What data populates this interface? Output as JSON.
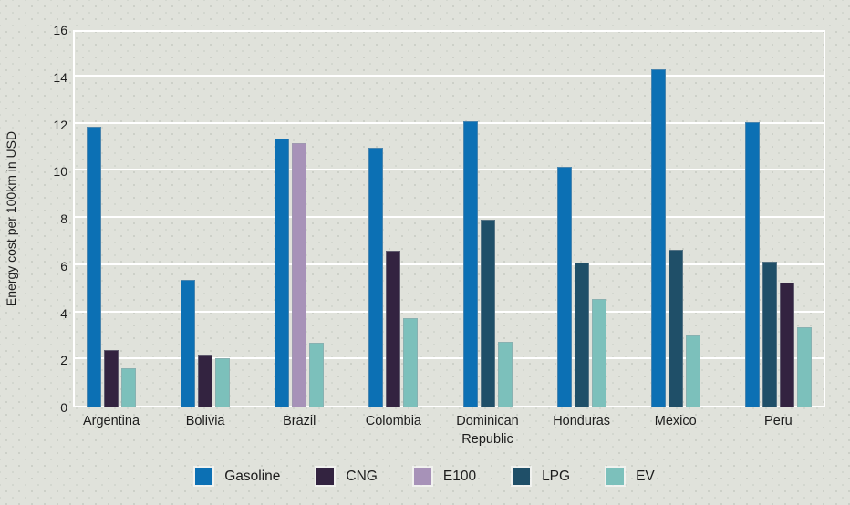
{
  "chart_data": {
    "type": "bar",
    "title": "",
    "xlabel": "",
    "ylabel": "Energy cost per 100km in USD",
    "ylim": [
      0,
      16
    ],
    "ytick_step": 2,
    "yticks": [
      "0",
      "2",
      "4",
      "6",
      "8",
      "10",
      "12",
      "14",
      "16"
    ],
    "grid": "horizontal white gridlines on",
    "legend_position": "bottom-center",
    "categories": [
      "Argentina",
      "Bolivia",
      "Brazil",
      "Colombia",
      "Dominican Republic",
      "Honduras",
      "Mexico",
      "Peru"
    ],
    "series_legend": [
      "Gasoline",
      "CNG",
      "E100",
      "LPG",
      "EV"
    ],
    "series_colors": {
      "Gasoline": "#0c70b4",
      "CNG": "#332340",
      "E100": "#a792b8",
      "LPG": "#1f4f68",
      "EV": "#7cc0bb"
    },
    "groups": [
      {
        "country": "Argentina",
        "bars": [
          {
            "series": "Gasoline",
            "value": 11.9
          },
          {
            "series": "CNG",
            "value": 2.45
          },
          {
            "series": "EV",
            "value": 1.65
          }
        ]
      },
      {
        "country": "Bolivia",
        "bars": [
          {
            "series": "Gasoline",
            "value": 5.4
          },
          {
            "series": "CNG",
            "value": 2.25
          },
          {
            "series": "EV",
            "value": 2.1
          }
        ]
      },
      {
        "country": "Brazil",
        "bars": [
          {
            "series": "Gasoline",
            "value": 11.4
          },
          {
            "series": "E100",
            "value": 11.2
          },
          {
            "series": "EV",
            "value": 2.75
          }
        ]
      },
      {
        "country": "Colombia",
        "bars": [
          {
            "series": "Gasoline",
            "value": 11.0
          },
          {
            "series": "CNG",
            "value": 6.65
          },
          {
            "series": "EV",
            "value": 3.8
          }
        ]
      },
      {
        "country": "Dominican Republic",
        "bars": [
          {
            "series": "Gasoline",
            "value": 12.15
          },
          {
            "series": "LPG",
            "value": 7.95
          },
          {
            "series": "EV",
            "value": 2.8
          }
        ]
      },
      {
        "country": "Honduras",
        "bars": [
          {
            "series": "Gasoline",
            "value": 10.2
          },
          {
            "series": "LPG",
            "value": 6.15
          },
          {
            "series": "EV",
            "value": 4.6
          }
        ]
      },
      {
        "country": "Mexico",
        "bars": [
          {
            "series": "Gasoline",
            "value": 14.35
          },
          {
            "series": "LPG",
            "value": 6.7
          },
          {
            "series": "EV",
            "value": 3.05
          }
        ]
      },
      {
        "country": "Peru",
        "bars": [
          {
            "series": "Gasoline",
            "value": 12.1
          },
          {
            "series": "LPG",
            "value": 6.2
          },
          {
            "series": "CNG",
            "value": 5.3
          },
          {
            "series": "EV",
            "value": 3.4
          }
        ]
      }
    ]
  },
  "colors": {
    "background": "#e0e2db",
    "grid": "#ffffff",
    "text": "#1c1c1c"
  }
}
